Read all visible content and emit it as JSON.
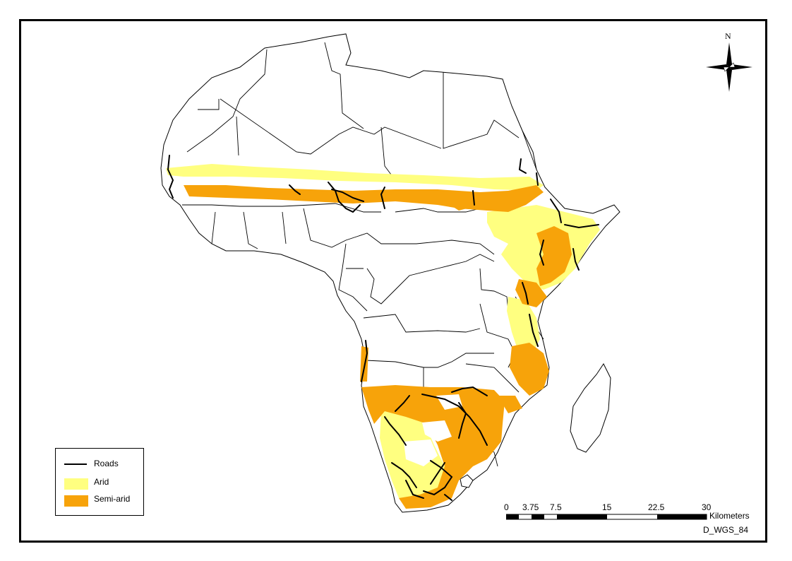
{
  "map": {
    "region": "Africa",
    "colors": {
      "arid": "#FFFF80",
      "semi_arid": "#F7A30A",
      "roads": "#000000",
      "borders": "#000000",
      "land": "#FFFFFF",
      "frame": "#000000"
    }
  },
  "legend": {
    "items": [
      {
        "label": "Roads",
        "symbol": "line",
        "color": "#000000"
      },
      {
        "label": "Arid",
        "symbol": "fill",
        "color": "#FFFF80"
      },
      {
        "label": "Semi-arid",
        "symbol": "fill",
        "color": "#F7A30A"
      }
    ]
  },
  "scale_bar": {
    "ticks": [
      "0",
      "3.75",
      "7.5",
      "15",
      "22.5",
      "30"
    ],
    "unit": "Kilometers",
    "datum": "D_WGS_84"
  },
  "north_arrow": {
    "label": "N",
    "icon": "compass-rose-icon"
  }
}
